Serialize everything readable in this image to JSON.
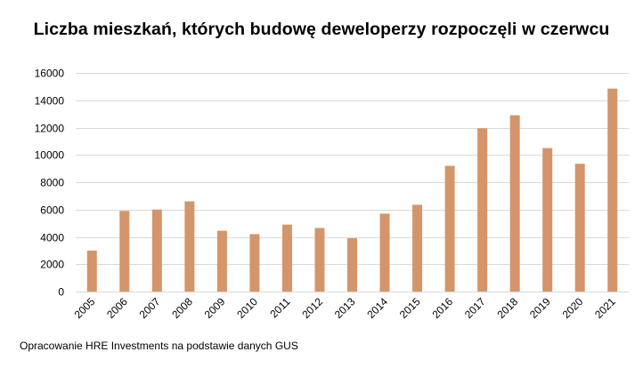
{
  "chart_data": {
    "type": "bar",
    "title": "Liczba mieszkań, których budowę deweloperzy rozpoczęli w czerwcu",
    "categories": [
      "2005",
      "2006",
      "2007",
      "2008",
      "2009",
      "2010",
      "2011",
      "2012",
      "2013",
      "2014",
      "2015",
      "2016",
      "2017",
      "2018",
      "2019",
      "2020",
      "2021"
    ],
    "values": [
      3000,
      5900,
      6000,
      6600,
      4450,
      4200,
      4900,
      4650,
      3900,
      5700,
      6350,
      9200,
      11950,
      12900,
      10500,
      9350,
      14850
    ],
    "ylim": [
      0,
      16000
    ],
    "yticks": [
      0,
      2000,
      4000,
      6000,
      8000,
      10000,
      12000,
      14000,
      16000
    ],
    "grid": true,
    "legend": "none",
    "bar_color": "#D4956A",
    "grid_color": "#D9D9D9"
  },
  "source_note": "Opracowanie HRE Investments na podstawie danych GUS"
}
